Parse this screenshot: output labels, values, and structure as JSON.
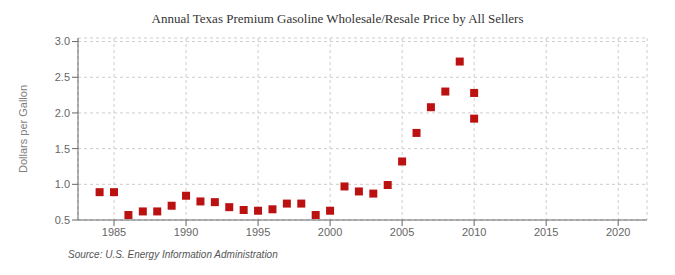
{
  "chart_data": {
    "type": "scatter",
    "title": "Annual Texas Premium Gasoline Wholesale/Resale Price by All Sellers",
    "ylabel": "Dollars per Gallon",
    "annotations": [
      "Source: U.S. Energy Information Administration"
    ],
    "x": [
      1984,
      1985,
      1986,
      1987,
      1988,
      1989,
      1990,
      1991,
      1992,
      1993,
      1994,
      1995,
      1996,
      1997,
      1998,
      1999,
      2000,
      2001,
      2002,
      2003,
      2004,
      2005,
      2006,
      2007,
      2008,
      2009,
      2010,
      2010
    ],
    "values": [
      0.89,
      0.89,
      0.57,
      0.62,
      0.62,
      0.7,
      0.84,
      0.76,
      0.75,
      0.68,
      0.64,
      0.63,
      0.65,
      0.73,
      0.73,
      0.57,
      0.63,
      0.97,
      0.9,
      0.87,
      0.99,
      1.32,
      1.72,
      2.08,
      2.3,
      2.72,
      1.92,
      2.28
    ],
    "color": "#bb1111",
    "marker": "square",
    "xlim": [
      1982.5,
      2022
    ],
    "ylim": [
      0.5,
      3.05
    ],
    "xticks": [
      1985,
      1990,
      1995,
      2000,
      2005,
      2010,
      2015,
      2020
    ],
    "yticks": [
      0.5,
      {
        "value": 1,
        "label": "1.0"
      },
      1.5,
      {
        "value": 2,
        "label": "2.0"
      },
      2.5,
      {
        "value": 3,
        "label": "3.0"
      }
    ],
    "grid": true
  }
}
